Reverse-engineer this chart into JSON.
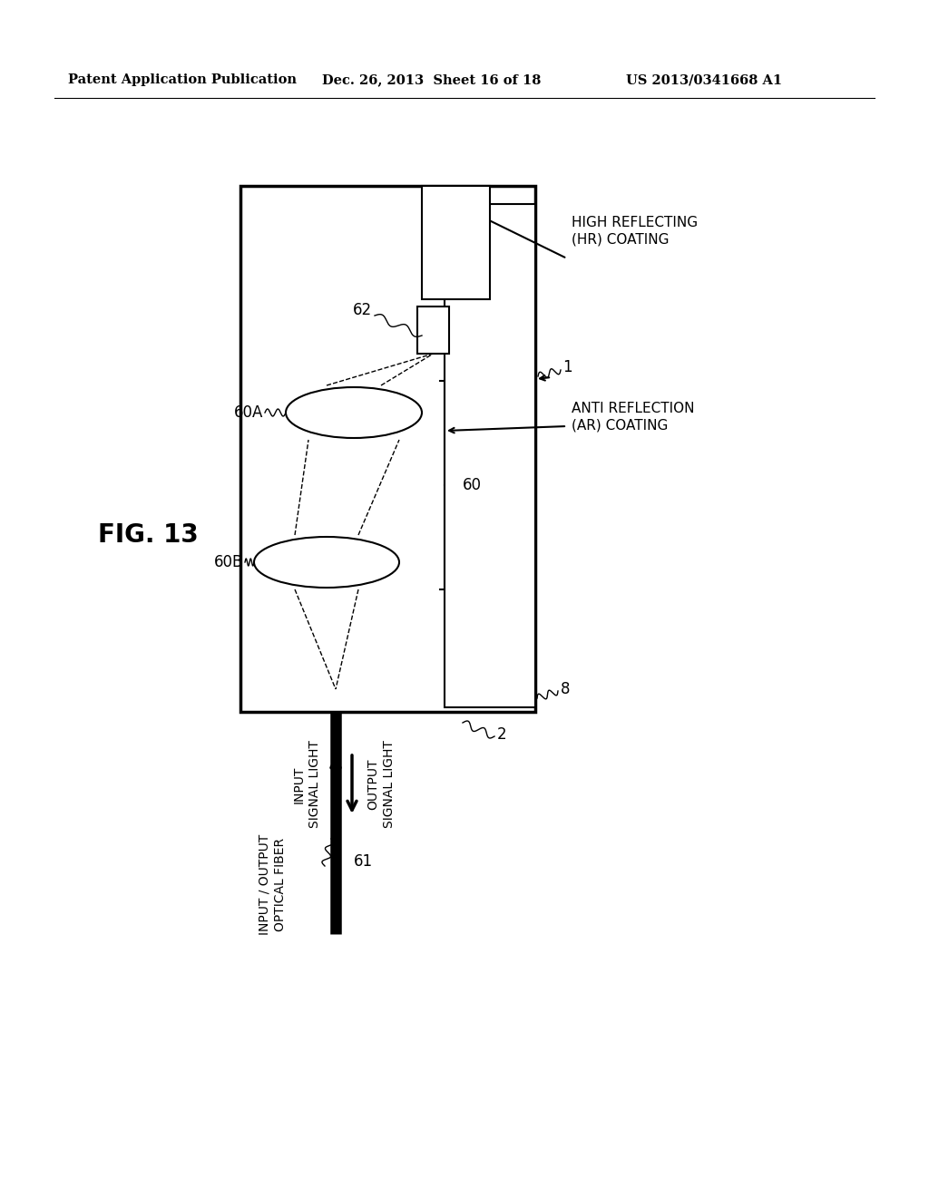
{
  "bg_color": "#ffffff",
  "header_left": "Patent Application Publication",
  "header_mid": "Dec. 26, 2013  Sheet 16 of 18",
  "header_right": "US 2013/0341668 A1",
  "fig_label": "FIG. 13",
  "labels": {
    "hr_coating": "HIGH REFLECTING\n(HR) COATING",
    "ar_coating": "ANTI REFLECTION\n(AR) COATING",
    "label_1": "1",
    "label_2": "2",
    "label_8": "8",
    "label_60": "60",
    "label_60A": "60A",
    "label_60B": "60B",
    "label_61": "61",
    "label_62": "62",
    "input_signal": "INPUT\nSIGNAL LIGHT",
    "output_signal": "OUTPUT\nSIGNAL LIGHT",
    "io_fiber": "INPUT / OUTPUT\nOPTICAL FIBER"
  }
}
